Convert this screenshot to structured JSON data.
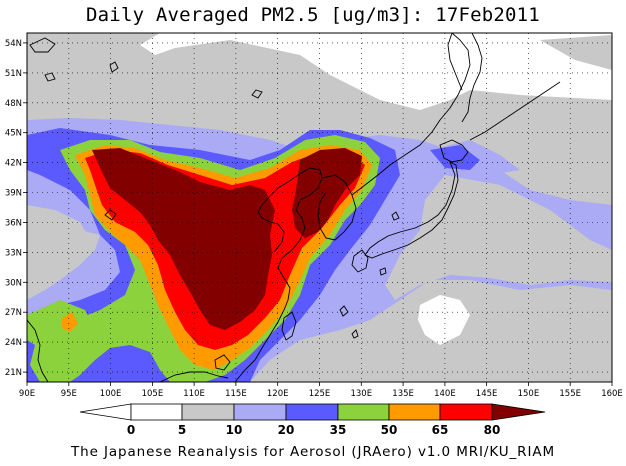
{
  "title": "Daily Averaged PM2.5 [ug/m3]: 17Feb2011",
  "footer": "The Japanese Reanalysis for Aerosol (JRAero) v1.0 MRI/KU_RIAM",
  "map": {
    "lon_range": [
      90,
      160
    ],
    "lat_range": [
      20,
      55
    ],
    "lon_ticks": [
      "90E",
      "95E",
      "100E",
      "105E",
      "110E",
      "115E",
      "120E",
      "125E",
      "130E",
      "135E",
      "140E",
      "145E",
      "150E",
      "155E",
      "160E"
    ],
    "lat_ticks": [
      "54N",
      "51N",
      "48N",
      "45N",
      "42N",
      "39N",
      "36N",
      "33N",
      "30N",
      "27N",
      "24N",
      "21N"
    ]
  },
  "legend": {
    "levels": [
      "0",
      "5",
      "10",
      "20",
      "35",
      "50",
      "65",
      "80"
    ],
    "colors": {
      "below_0": "#ffffff",
      "0_5": "#ffffff",
      "5_10": "#c8c8c8",
      "10_20": "#aaaaf5",
      "20_35": "#5a5aff",
      "35_50": "#8cd23c",
      "50_65": "#ff9b00",
      "65_80": "#ff0000",
      "above_80": "#820000"
    }
  }
}
